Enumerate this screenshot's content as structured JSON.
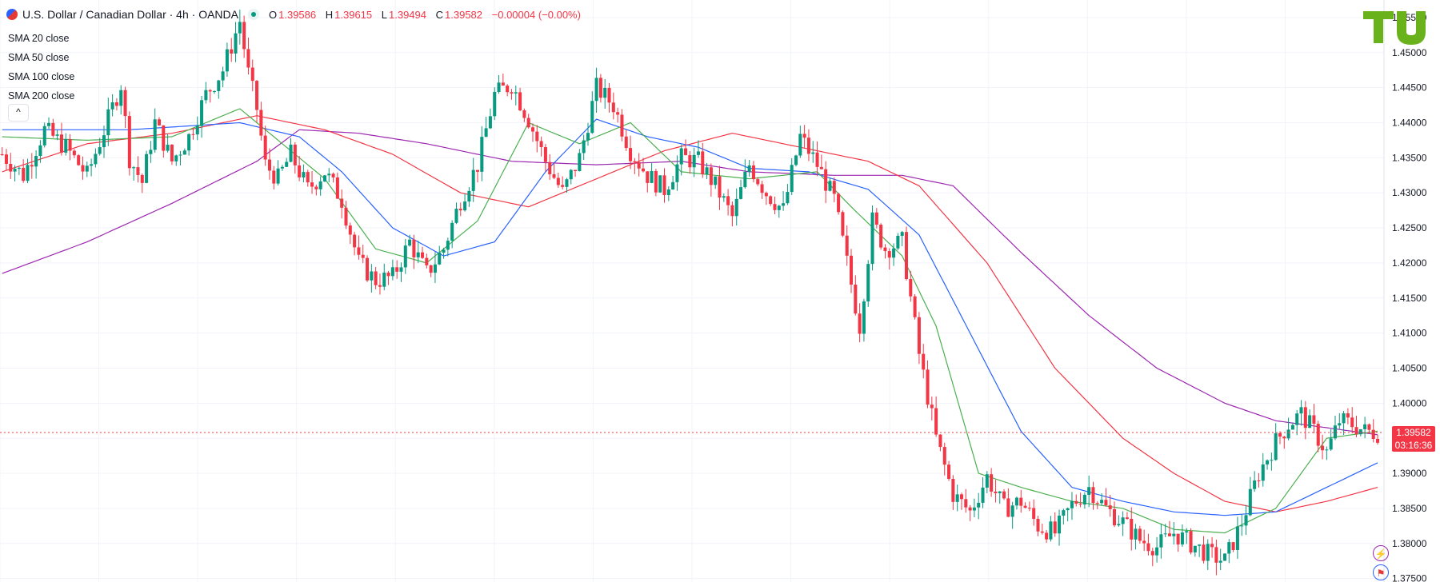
{
  "header": {
    "title": "U.S. Dollar / Canadian Dollar · 4h · OANDA",
    "open_label": "O",
    "open": "1.39586",
    "high_label": "H",
    "high": "1.39615",
    "low_label": "L",
    "low": "1.39494",
    "close_label": "C",
    "close": "1.39582",
    "change": "−0.00004 (−0.00%)"
  },
  "legend": {
    "sma20": "SMA 20 close",
    "sma50": "SMA 50 close",
    "sma100": "SMA 100 close",
    "sma200": "SMA 200 close",
    "collapse": "^"
  },
  "last_price": {
    "price": "1.39582",
    "countdown": "03:16:36"
  },
  "colors": {
    "up": "#089981",
    "down": "#f23645",
    "sma20": "#4caf50",
    "sma50": "#2962ff",
    "sma100": "#f23645",
    "sma200": "#9c27b0",
    "grid": "#f0f3fa",
    "axis_text": "#131722",
    "logo": "#6ab21c"
  },
  "icons": {
    "flag": "usd-cad-flag-icon",
    "status": "market-status-dot-icon",
    "logo": "tu-logo",
    "lightning": "lightning-icon",
    "flag_small": "flag-icon"
  },
  "chart_data": {
    "type": "candlestick",
    "title": "U.S. Dollar / Canadian Dollar · 4h · OANDA",
    "ylim": [
      1.3745,
      1.4575
    ],
    "y_ticks": [
      "1.37500",
      "1.38000",
      "1.38500",
      "1.39000",
      "1.39500",
      "1.40000",
      "1.40500",
      "1.41000",
      "1.41500",
      "1.42000",
      "1.42500",
      "1.43000",
      "1.43500",
      "1.44000",
      "1.44500",
      "1.45000",
      "1.45500"
    ],
    "grid": true,
    "bars": 275,
    "price_path": [
      [
        0,
        1.4355
      ],
      [
        5,
        1.4325
      ],
      [
        10,
        1.439
      ],
      [
        15,
        1.4365
      ],
      [
        20,
        1.4325
      ],
      [
        25,
        1.4405
      ],
      [
        28,
        1.4455
      ],
      [
        30,
        1.435
      ],
      [
        33,
        1.4315
      ],
      [
        36,
        1.44
      ],
      [
        40,
        1.4345
      ],
      [
        44,
        1.438
      ],
      [
        48,
        1.444
      ],
      [
        52,
        1.4475
      ],
      [
        56,
        1.4545
      ],
      [
        58,
        1.447
      ],
      [
        60,
        1.442
      ],
      [
        62,
        1.434
      ],
      [
        65,
        1.432
      ],
      [
        68,
        1.4355
      ],
      [
        72,
        1.4305
      ],
      [
        76,
        1.433
      ],
      [
        80,
        1.429
      ],
      [
        84,
        1.42
      ],
      [
        88,
        1.4175
      ],
      [
        92,
        1.418
      ],
      [
        96,
        1.423
      ],
      [
        100,
        1.4185
      ],
      [
        104,
        1.422
      ],
      [
        108,
        1.429
      ],
      [
        112,
        1.434
      ],
      [
        116,
        1.444
      ],
      [
        120,
        1.4455
      ],
      [
        124,
        1.4405
      ],
      [
        128,
        1.4345
      ],
      [
        132,
        1.43
      ],
      [
        136,
        1.435
      ],
      [
        140,
        1.445
      ],
      [
        144,
        1.4425
      ],
      [
        148,
        1.436
      ],
      [
        152,
        1.4325
      ],
      [
        156,
        1.4305
      ],
      [
        160,
        1.435
      ],
      [
        164,
        1.4345
      ],
      [
        168,
        1.431
      ],
      [
        172,
        1.4265
      ],
      [
        176,
        1.434
      ],
      [
        180,
        1.43
      ],
      [
        184,
        1.4275
      ],
      [
        188,
        1.438
      ],
      [
        192,
        1.434
      ],
      [
        196,
        1.429
      ],
      [
        200,
        1.417
      ],
      [
        202,
        1.411
      ],
      [
        205,
        1.426
      ],
      [
        208,
        1.422
      ],
      [
        212,
        1.423
      ],
      [
        216,
        1.407
      ],
      [
        220,
        1.395
      ],
      [
        224,
        1.387
      ],
      [
        228,
        1.3845
      ],
      [
        232,
        1.3895
      ],
      [
        236,
        1.385
      ],
      [
        240,
        1.386
      ],
      [
        244,
        1.3825
      ],
      [
        248,
        1.3815
      ],
      [
        252,
        1.3855
      ],
      [
        256,
        1.388
      ],
      [
        260,
        1.385
      ],
      [
        264,
        1.383
      ],
      [
        268,
        1.3805
      ],
      [
        272,
        1.3795
      ],
      [
        276,
        1.3815
      ],
      [
        280,
        1.38
      ],
      [
        284,
        1.3785
      ],
      [
        288,
        1.3775
      ],
      [
        292,
        1.383
      ],
      [
        296,
        1.39
      ],
      [
        300,
        1.3945
      ],
      [
        303,
        1.397
      ],
      [
        306,
        1.3985
      ],
      [
        309,
        1.396
      ],
      [
        312,
        1.393
      ],
      [
        315,
        1.3975
      ],
      [
        318,
        1.397
      ],
      [
        321,
        1.396
      ],
      [
        324,
        1.3958
      ]
    ],
    "sma20_path": [
      [
        0,
        1.438
      ],
      [
        20,
        1.4375
      ],
      [
        40,
        1.438
      ],
      [
        56,
        1.442
      ],
      [
        64,
        1.438
      ],
      [
        76,
        1.432
      ],
      [
        88,
        1.422
      ],
      [
        100,
        1.42
      ],
      [
        112,
        1.426
      ],
      [
        124,
        1.44
      ],
      [
        136,
        1.437
      ],
      [
        148,
        1.44
      ],
      [
        160,
        1.433
      ],
      [
        176,
        1.432
      ],
      [
        192,
        1.433
      ],
      [
        200,
        1.428
      ],
      [
        212,
        1.421
      ],
      [
        220,
        1.411
      ],
      [
        230,
        1.39
      ],
      [
        240,
        1.388
      ],
      [
        252,
        1.386
      ],
      [
        264,
        1.385
      ],
      [
        276,
        1.382
      ],
      [
        288,
        1.3815
      ],
      [
        300,
        1.385
      ],
      [
        312,
        1.395
      ],
      [
        324,
        1.396
      ]
    ],
    "sma50_path": [
      [
        0,
        1.439
      ],
      [
        30,
        1.439
      ],
      [
        56,
        1.44
      ],
      [
        70,
        1.438
      ],
      [
        80,
        1.433
      ],
      [
        92,
        1.425
      ],
      [
        104,
        1.421
      ],
      [
        116,
        1.423
      ],
      [
        128,
        1.433
      ],
      [
        140,
        1.4405
      ],
      [
        152,
        1.438
      ],
      [
        164,
        1.4365
      ],
      [
        176,
        1.4335
      ],
      [
        190,
        1.433
      ],
      [
        204,
        1.4305
      ],
      [
        216,
        1.424
      ],
      [
        228,
        1.41
      ],
      [
        240,
        1.396
      ],
      [
        252,
        1.388
      ],
      [
        264,
        1.386
      ],
      [
        276,
        1.3845
      ],
      [
        288,
        1.384
      ],
      [
        300,
        1.3845
      ],
      [
        312,
        1.388
      ],
      [
        324,
        1.3915
      ]
    ],
    "sma100_path": [
      [
        0,
        1.433
      ],
      [
        20,
        1.437
      ],
      [
        40,
        1.4385
      ],
      [
        60,
        1.441
      ],
      [
        76,
        1.439
      ],
      [
        92,
        1.4355
      ],
      [
        108,
        1.43
      ],
      [
        124,
        1.428
      ],
      [
        140,
        1.432
      ],
      [
        156,
        1.436
      ],
      [
        172,
        1.4385
      ],
      [
        188,
        1.4365
      ],
      [
        204,
        1.4345
      ],
      [
        216,
        1.431
      ],
      [
        232,
        1.42
      ],
      [
        248,
        1.405
      ],
      [
        264,
        1.395
      ],
      [
        276,
        1.39
      ],
      [
        288,
        1.386
      ],
      [
        300,
        1.3845
      ],
      [
        312,
        1.386
      ],
      [
        324,
        1.388
      ]
    ],
    "sma200_path": [
      [
        0,
        1.4185
      ],
      [
        20,
        1.423
      ],
      [
        40,
        1.4285
      ],
      [
        60,
        1.4345
      ],
      [
        70,
        1.439
      ],
      [
        84,
        1.4385
      ],
      [
        100,
        1.437
      ],
      [
        120,
        1.4345
      ],
      [
        140,
        1.434
      ],
      [
        160,
        1.4345
      ],
      [
        176,
        1.433
      ],
      [
        196,
        1.4325
      ],
      [
        212,
        1.4325
      ],
      [
        224,
        1.431
      ],
      [
        240,
        1.4215
      ],
      [
        256,
        1.4125
      ],
      [
        272,
        1.405
      ],
      [
        288,
        1.4
      ],
      [
        300,
        1.3975
      ],
      [
        312,
        1.3965
      ],
      [
        324,
        1.3955
      ]
    ]
  }
}
